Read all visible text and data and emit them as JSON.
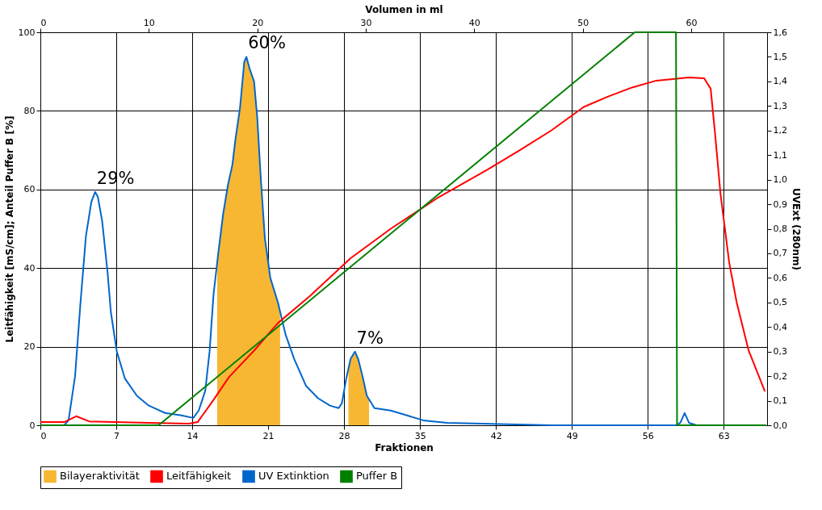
{
  "chart_data": {
    "type": "line",
    "xlabel": "Fraktionen",
    "x2label": "Volumen in ml",
    "ylabel": "Leitfähigkeit [mS/cm]; Anteil Puffer B [%]",
    "y2label": "UVExt (280nm)",
    "xlim": [
      0,
      67
    ],
    "xticks": [
      0,
      7,
      14,
      21,
      28,
      35,
      42,
      49,
      56,
      63
    ],
    "x2lim": [
      0,
      67
    ],
    "x2ticks": [
      0,
      10,
      20,
      30,
      40,
      50,
      60
    ],
    "ylim": [
      0,
      100
    ],
    "yticks": [
      0,
      20,
      40,
      60,
      80,
      100
    ],
    "y2lim": [
      0,
      1.6
    ],
    "y2ticks": [
      {
        "value": 0,
        "label": "0,0"
      },
      {
        "value": 0.1,
        "label": "0,1"
      },
      {
        "value": 0.2,
        "label": "0,2"
      },
      {
        "value": 0.3,
        "label": "0,3"
      },
      {
        "value": 0.4,
        "label": "0,4"
      },
      {
        "value": 0.5,
        "label": "0,5"
      },
      {
        "value": 0.6,
        "label": "0,6"
      },
      {
        "value": 0.7,
        "label": "0,7"
      },
      {
        "value": 0.8,
        "label": "0,8"
      },
      {
        "value": 0.9,
        "label": "0,9"
      },
      {
        "value": 1.0,
        "label": "1,0"
      },
      {
        "value": 1.1,
        "label": "1,1"
      },
      {
        "value": 1.2,
        "label": "1,2"
      },
      {
        "value": 1.3,
        "label": "1,3"
      },
      {
        "value": 1.4,
        "label": "1,4"
      },
      {
        "value": 1.5,
        "label": "1,5"
      },
      {
        "value": 1.6,
        "label": "1,6"
      }
    ],
    "grid": true,
    "legend": "bottom",
    "line_style": "solid",
    "marker": "none",
    "series": [
      {
        "name": "Bilayeraktivität",
        "type": "area",
        "axis": "y2",
        "color": "#f7b733",
        "x": [
          16.3,
          16.85,
          17.3,
          17.7,
          18.0,
          18.4,
          18.8,
          19.0,
          19.3,
          19.7,
          20.0,
          20.3,
          20.7,
          21.2,
          21.9,
          22.1,
          null,
          28.4,
          28.6,
          29.0,
          29.3,
          29.7,
          30.1,
          30.3
        ],
        "values": [
          0.68,
          0.86,
          0.98,
          1.06,
          1.17,
          1.29,
          1.48,
          1.5,
          1.45,
          1.4,
          1.25,
          1.02,
          0.76,
          0.6,
          0.5,
          0.47,
          null,
          0.24,
          0.27,
          0.3,
          0.27,
          0.2,
          0.12,
          0.1
        ]
      },
      {
        "name": "Leitfähigkeit",
        "color": "#ff0000",
        "x": [
          0,
          2.2,
          3.3,
          4.5,
          10,
          13.7,
          14.5,
          16,
          17.4,
          19.7,
          21.9,
          24.9,
          28.6,
          32.3,
          36.7,
          41.2,
          44.2,
          47.1,
          50.1,
          52.3,
          54.6,
          56.8,
          59.8,
          61.2,
          61.8,
          62.2,
          62.7,
          63.5,
          64.2,
          65.3,
          66.8
        ],
        "values": [
          0.8,
          0.8,
          2.3,
          1,
          0.6,
          0.4,
          0.8,
          6.6,
          12.3,
          19,
          26,
          33,
          42.5,
          50,
          58,
          65,
          70,
          75,
          81,
          83.6,
          86,
          87.7,
          88.5,
          88.3,
          85.6,
          74.3,
          59,
          41.5,
          31.2,
          19,
          8.6
        ]
      },
      {
        "name": "UV Extinktion",
        "axis": "y2",
        "color": "#0066cc",
        "x": [
          0,
          2.2,
          2.6,
          3.2,
          3.7,
          4.2,
          4.7,
          5.05,
          5.3,
          5.7,
          6.2,
          6.5,
          7.05,
          7.8,
          8.9,
          10,
          11.5,
          13,
          14.1,
          14.6,
          15.2,
          15.6,
          15.96,
          16.4,
          16.85,
          17.3,
          17.7,
          18.0,
          18.4,
          18.8,
          19.0,
          19.3,
          19.7,
          20.0,
          20.3,
          20.7,
          21.2,
          21.9,
          22.6,
          23.4,
          24.5,
          25.6,
          26.7,
          27.5,
          27.8,
          28.2,
          28.6,
          29.0,
          29.3,
          29.7,
          30.1,
          30.8,
          32.3,
          33.8,
          35.3,
          37.5,
          47.1,
          58.6,
          59.0,
          59.4,
          59.8,
          60.5,
          66.9
        ],
        "values": [
          0,
          0,
          0.02,
          0.2,
          0.5,
          0.77,
          0.91,
          0.95,
          0.93,
          0.83,
          0.62,
          0.46,
          0.3,
          0.19,
          0.12,
          0.08,
          0.05,
          0.04,
          0.03,
          0.06,
          0.14,
          0.3,
          0.53,
          0.7,
          0.86,
          0.98,
          1.06,
          1.17,
          1.29,
          1.48,
          1.5,
          1.45,
          1.4,
          1.25,
          1.02,
          0.76,
          0.6,
          0.5,
          0.37,
          0.27,
          0.16,
          0.11,
          0.08,
          0.07,
          0.09,
          0.19,
          0.27,
          0.3,
          0.27,
          0.2,
          0.12,
          0.07,
          0.06,
          0.04,
          0.02,
          0.01,
          0,
          0,
          0.01,
          0.05,
          0.01,
          0,
          0
        ]
      },
      {
        "name": "Puffer B",
        "color": "#008000",
        "x": [
          0,
          10.9,
          54.8,
          58.6,
          58.7,
          66.9
        ],
        "values": [
          0,
          0,
          100,
          100,
          0,
          0
        ]
      }
    ],
    "annotations": [
      "29%",
      "60%",
      "7%"
    ]
  }
}
